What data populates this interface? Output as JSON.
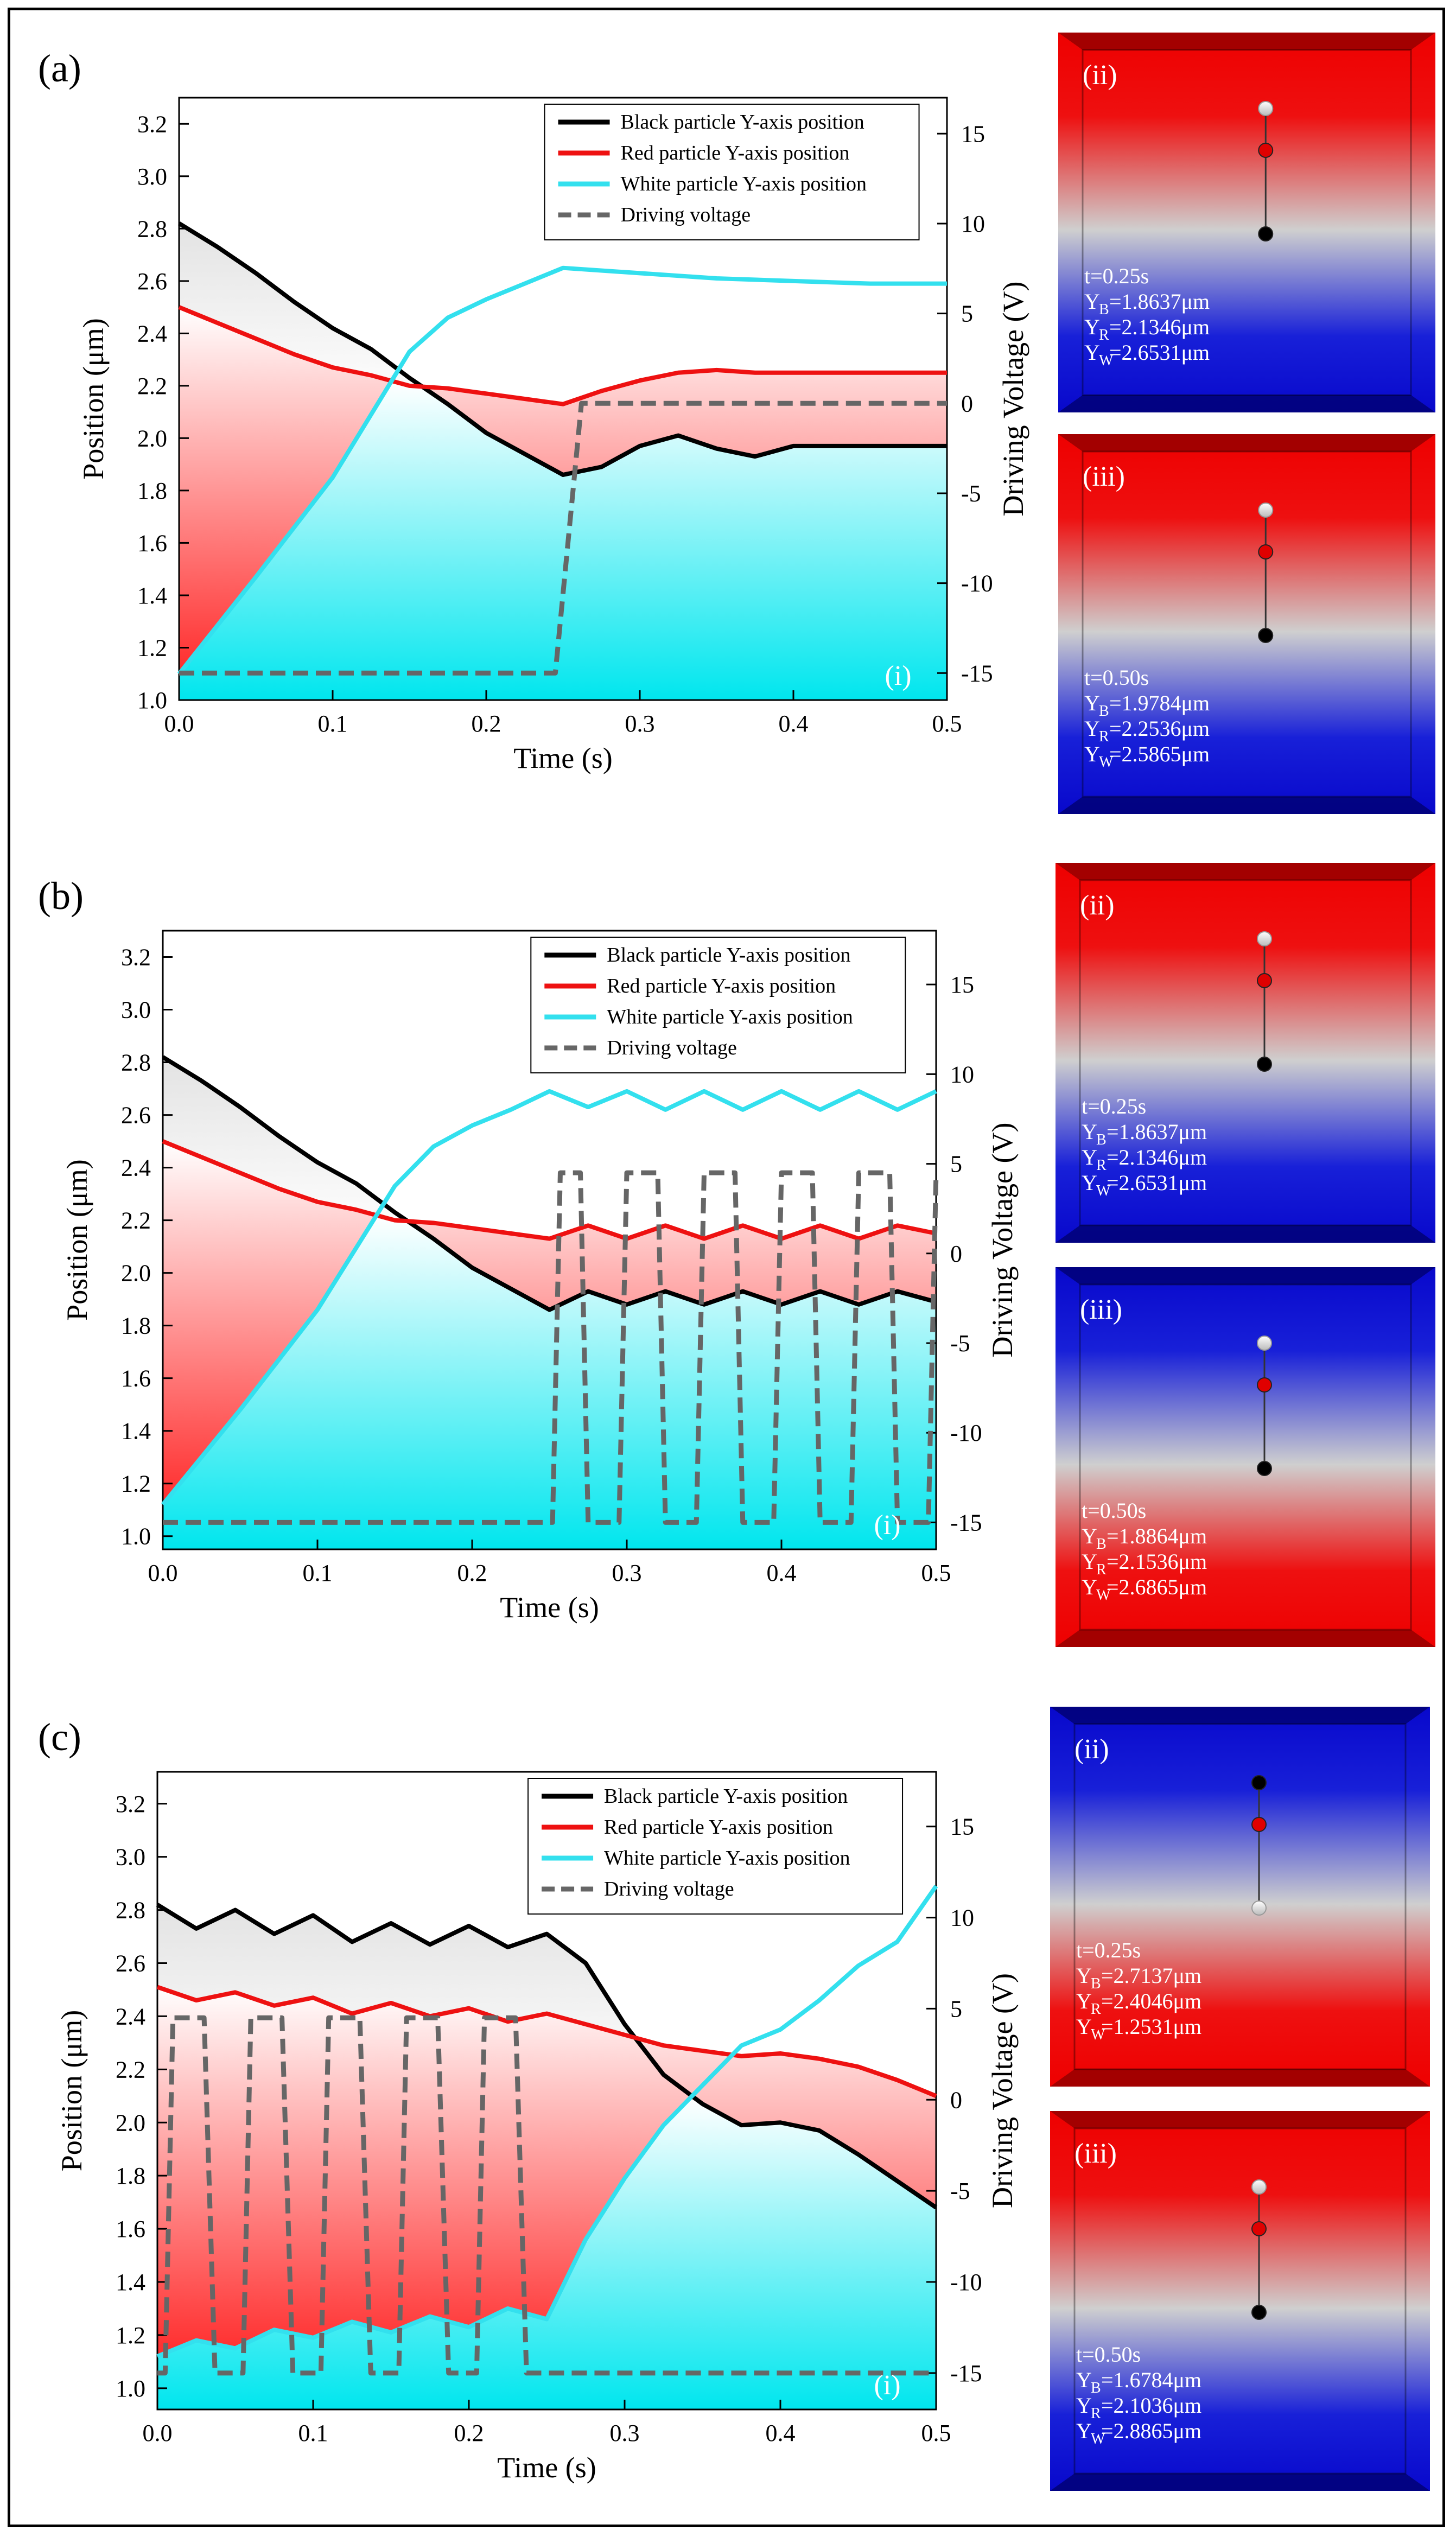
{
  "panels": [
    {
      "label": "(a)",
      "inset_label": "(i)",
      "chart_data": {
        "type": "line",
        "xlabel": "Time (s)",
        "ylabel": "Position (μm)",
        "y2label": "Driving Voltage (V)",
        "xlim": [
          0,
          0.5
        ],
        "ylim": [
          1.0,
          3.3
        ],
        "y2lim": [
          -16.5,
          17
        ],
        "xticks": [
          "0.0",
          "0.1",
          "0.2",
          "0.3",
          "0.4",
          "0.5"
        ],
        "yticks": [
          "1.0",
          "1.2",
          "1.4",
          "1.6",
          "1.8",
          "2.0",
          "2.2",
          "2.4",
          "2.6",
          "2.8",
          "3.0",
          "3.2"
        ],
        "y2ticks": [
          "-15",
          "-10",
          "-5",
          "0",
          "5",
          "10",
          "15"
        ],
        "legend": [
          "Black particle Y-axis position",
          "Red particle Y-axis position",
          "White particle Y-axis position",
          "Driving voltage"
        ],
        "series": [
          {
            "name": "Black particle Y-axis position",
            "color": "#000000",
            "x": [
              0,
              0.025,
              0.05,
              0.075,
              0.1,
              0.125,
              0.15,
              0.175,
              0.2,
              0.225,
              0.25,
              0.275,
              0.3,
              0.325,
              0.35,
              0.375,
              0.4,
              0.425,
              0.45,
              0.475,
              0.5
            ],
            "y": [
              2.82,
              2.73,
              2.63,
              2.52,
              2.42,
              2.34,
              2.23,
              2.13,
              2.02,
              1.94,
              1.86,
              1.89,
              1.97,
              2.01,
              1.96,
              1.93,
              1.97,
              1.97,
              1.97,
              1.97,
              1.97
            ]
          },
          {
            "name": "Red particle Y-axis position",
            "color": "#ee1111",
            "x": [
              0,
              0.025,
              0.05,
              0.075,
              0.1,
              0.125,
              0.15,
              0.175,
              0.2,
              0.225,
              0.25,
              0.275,
              0.3,
              0.325,
              0.35,
              0.375,
              0.4,
              0.425,
              0.45,
              0.475,
              0.5
            ],
            "y": [
              2.5,
              2.44,
              2.38,
              2.32,
              2.27,
              2.24,
              2.2,
              2.19,
              2.17,
              2.15,
              2.13,
              2.18,
              2.22,
              2.25,
              2.26,
              2.25,
              2.25,
              2.25,
              2.25,
              2.25,
              2.25
            ]
          },
          {
            "name": "White particle Y-axis position",
            "color": "#33e0ee",
            "x": [
              0,
              0.05,
              0.1,
              0.15,
              0.175,
              0.2,
              0.225,
              0.25,
              0.3,
              0.35,
              0.4,
              0.45,
              0.5
            ],
            "y": [
              1.1,
              1.47,
              1.85,
              2.33,
              2.46,
              2.53,
              2.59,
              2.65,
              2.63,
              2.61,
              2.6,
              2.59,
              2.59
            ]
          },
          {
            "name": "Driving voltage",
            "color": "#666666",
            "axis": "y2",
            "dashed": true,
            "x": [
              0,
              0.245,
              0.262,
              0.5
            ],
            "y": [
              -15,
              -15,
              0,
              0
            ]
          }
        ]
      },
      "snapshots": [
        {
          "label": "(ii)",
          "top": "red",
          "t": "t=0.25s",
          "YB": "=1.8637μm",
          "YR": "=2.1346μm",
          "YW": "=2.6531μm",
          "order": [
            "white",
            "red",
            "black"
          ]
        },
        {
          "label": "(iii)",
          "top": "red",
          "t": "t=0.50s",
          "YB": "=1.9784μm",
          "YR": "=2.2536μm",
          "YW": "=2.5865μm",
          "order": [
            "white",
            "red",
            "black"
          ]
        }
      ]
    },
    {
      "label": "(b)",
      "inset_label": "(i)",
      "chart_data": {
        "type": "line",
        "xlabel": "Time (s)",
        "ylabel": "Position (μm)",
        "y2label": "Driving Voltage (V)",
        "xlim": [
          0,
          0.5
        ],
        "ylim": [
          0.95,
          3.3
        ],
        "y2lim": [
          -16.5,
          18
        ],
        "xticks": [
          "0.0",
          "0.1",
          "0.2",
          "0.3",
          "0.4",
          "0.5"
        ],
        "yticks": [
          "1.0",
          "1.2",
          "1.4",
          "1.6",
          "1.8",
          "2.0",
          "2.2",
          "2.4",
          "2.6",
          "2.8",
          "3.0",
          "3.2"
        ],
        "y2ticks": [
          "-15",
          "-10",
          "-5",
          "0",
          "5",
          "10",
          "15"
        ],
        "legend": [
          "Black particle Y-axis position",
          "Red particle Y-axis position",
          "White particle Y-axis position",
          "Driving voltage"
        ],
        "series": [
          {
            "name": "Black particle Y-axis position",
            "color": "#000000",
            "x": [
              0,
              0.025,
              0.05,
              0.075,
              0.1,
              0.125,
              0.15,
              0.175,
              0.2,
              0.225,
              0.25,
              0.275,
              0.3,
              0.325,
              0.35,
              0.375,
              0.4,
              0.425,
              0.45,
              0.475,
              0.5
            ],
            "y": [
              2.82,
              2.73,
              2.63,
              2.52,
              2.42,
              2.34,
              2.23,
              2.13,
              2.02,
              1.94,
              1.86,
              1.93,
              1.88,
              1.93,
              1.88,
              1.93,
              1.88,
              1.93,
              1.88,
              1.93,
              1.89
            ]
          },
          {
            "name": "Red particle Y-axis position",
            "color": "#ee1111",
            "x": [
              0,
              0.025,
              0.05,
              0.075,
              0.1,
              0.125,
              0.15,
              0.175,
              0.2,
              0.225,
              0.25,
              0.275,
              0.3,
              0.325,
              0.35,
              0.375,
              0.4,
              0.425,
              0.45,
              0.475,
              0.5
            ],
            "y": [
              2.5,
              2.44,
              2.38,
              2.32,
              2.27,
              2.24,
              2.2,
              2.19,
              2.17,
              2.15,
              2.13,
              2.18,
              2.13,
              2.18,
              2.13,
              2.18,
              2.13,
              2.18,
              2.13,
              2.18,
              2.15
            ]
          },
          {
            "name": "White particle Y-axis position",
            "color": "#33e0ee",
            "x": [
              0,
              0.05,
              0.1,
              0.15,
              0.175,
              0.2,
              0.225,
              0.25,
              0.275,
              0.3,
              0.325,
              0.35,
              0.375,
              0.4,
              0.425,
              0.45,
              0.475,
              0.5
            ],
            "y": [
              1.12,
              1.48,
              1.86,
              2.33,
              2.48,
              2.56,
              2.62,
              2.69,
              2.63,
              2.69,
              2.62,
              2.69,
              2.62,
              2.69,
              2.62,
              2.69,
              2.62,
              2.69
            ]
          },
          {
            "name": "Driving voltage",
            "color": "#666666",
            "axis": "y2",
            "dashed": true,
            "x": [
              0,
              0.252,
              0.257,
              0.27,
              0.275,
              0.28,
              0.295,
              0.3,
              0.307,
              0.32,
              0.325,
              0.33,
              0.345,
              0.35,
              0.357,
              0.37,
              0.375,
              0.38,
              0.395,
              0.4,
              0.407,
              0.42,
              0.425,
              0.43,
              0.445,
              0.45,
              0.457,
              0.47,
              0.475,
              0.48,
              0.495,
              0.5
            ],
            "y": [
              -15,
              -15,
              4.5,
              4.5,
              -15,
              -15,
              -15,
              4.5,
              4.5,
              4.5,
              -15,
              -15,
              -15,
              4.5,
              4.5,
              4.5,
              -15,
              -15,
              -15,
              4.5,
              4.5,
              4.5,
              -15,
              -15,
              -15,
              4.5,
              4.5,
              4.5,
              -15,
              -15,
              -15,
              4.5
            ]
          }
        ]
      },
      "snapshots": [
        {
          "label": "(ii)",
          "top": "red",
          "t": "t=0.25s",
          "YB": "=1.8637μm",
          "YR": "=2.1346μm",
          "YW": "=2.6531μm",
          "order": [
            "white",
            "red",
            "black"
          ]
        },
        {
          "label": "(iii)",
          "top": "blue",
          "t": "t=0.50s",
          "YB": "=1.8864μm",
          "YR": "=2.1536μm",
          "YW": "=2.6865μm",
          "order": [
            "white",
            "red",
            "black"
          ]
        }
      ]
    },
    {
      "label": "(c)",
      "inset_label": "(i)",
      "chart_data": {
        "type": "line",
        "xlabel": "Time (s)",
        "ylabel": "Position (μm)",
        "y2label": "Driving Voltage (V)",
        "xlim": [
          0,
          0.5
        ],
        "ylim": [
          0.92,
          3.32
        ],
        "y2lim": [
          -17,
          18
        ],
        "xticks": [
          "0.0",
          "0.1",
          "0.2",
          "0.3",
          "0.4",
          "0.5"
        ],
        "yticks": [
          "1.0",
          "1.2",
          "1.4",
          "1.6",
          "1.8",
          "2.0",
          "2.2",
          "2.4",
          "2.6",
          "2.8",
          "3.0",
          "3.2"
        ],
        "y2ticks": [
          "-15",
          "-10",
          "-5",
          "0",
          "5",
          "10",
          "15"
        ],
        "legend": [
          "Black particle Y-axis position",
          "Red particle Y-axis position",
          "White particle Y-axis position",
          "Driving voltage"
        ],
        "series": [
          {
            "name": "Black particle Y-axis position",
            "color": "#000000",
            "x": [
              0,
              0.025,
              0.05,
              0.075,
              0.1,
              0.125,
              0.15,
              0.175,
              0.2,
              0.225,
              0.25,
              0.275,
              0.3,
              0.325,
              0.35,
              0.375,
              0.4,
              0.425,
              0.45,
              0.475,
              0.5
            ],
            "y": [
              2.82,
              2.73,
              2.8,
              2.71,
              2.78,
              2.68,
              2.75,
              2.67,
              2.74,
              2.66,
              2.71,
              2.6,
              2.37,
              2.18,
              2.07,
              1.99,
              2.0,
              1.97,
              1.88,
              1.78,
              1.68
            ]
          },
          {
            "name": "Red particle Y-axis position",
            "color": "#ee1111",
            "x": [
              0,
              0.025,
              0.05,
              0.075,
              0.1,
              0.125,
              0.15,
              0.175,
              0.2,
              0.225,
              0.25,
              0.275,
              0.3,
              0.325,
              0.35,
              0.375,
              0.4,
              0.425,
              0.45,
              0.475,
              0.5
            ],
            "y": [
              2.51,
              2.46,
              2.49,
              2.44,
              2.47,
              2.41,
              2.45,
              2.4,
              2.43,
              2.38,
              2.41,
              2.37,
              2.33,
              2.29,
              2.27,
              2.25,
              2.26,
              2.24,
              2.21,
              2.16,
              2.1
            ]
          },
          {
            "name": "White particle Y-axis position",
            "color": "#33e0ee",
            "x": [
              0,
              0.025,
              0.05,
              0.075,
              0.1,
              0.125,
              0.15,
              0.175,
              0.2,
              0.225,
              0.25,
              0.275,
              0.3,
              0.325,
              0.35,
              0.375,
              0.4,
              0.425,
              0.45,
              0.475,
              0.5
            ],
            "y": [
              1.12,
              1.18,
              1.15,
              1.22,
              1.19,
              1.25,
              1.21,
              1.27,
              1.23,
              1.3,
              1.26,
              1.56,
              1.79,
              1.99,
              2.14,
              2.29,
              2.35,
              2.46,
              2.59,
              2.68,
              2.89
            ]
          },
          {
            "name": "Driving voltage",
            "color": "#666666",
            "axis": "y2",
            "dashed": true,
            "x": [
              0,
              0.005,
              0.01,
              0.025,
              0.03,
              0.037,
              0.05,
              0.055,
              0.06,
              0.075,
              0.08,
              0.087,
              0.1,
              0.105,
              0.11,
              0.125,
              0.13,
              0.137,
              0.15,
              0.155,
              0.16,
              0.175,
              0.18,
              0.187,
              0.2,
              0.205,
              0.21,
              0.225,
              0.23,
              0.237,
              0.25,
              0.5
            ],
            "y": [
              -15,
              -15,
              4.5,
              4.5,
              4.5,
              -15,
              -15,
              -15,
              4.5,
              4.5,
              4.5,
              -15,
              -15,
              -15,
              4.5,
              4.5,
              4.5,
              -15,
              -15,
              -15,
              4.5,
              4.5,
              4.5,
              -15,
              -15,
              -15,
              4.5,
              4.5,
              4.5,
              -15,
              -15,
              -15
            ]
          }
        ]
      },
      "snapshots": [
        {
          "label": "(ii)",
          "top": "blue",
          "t": "t=0.25s",
          "YB": "=2.7137μm",
          "YR": "=2.4046μm",
          "YW": "=1.2531μm",
          "order": [
            "black",
            "red",
            "white"
          ]
        },
        {
          "label": "(iii)",
          "top": "red",
          "t": "t=0.50s",
          "YB": "=1.6784μm",
          "YR": "=2.1036μm",
          "YW": "=2.8865μm",
          "order": [
            "white",
            "red",
            "black"
          ]
        }
      ]
    }
  ],
  "symbols": {
    "YB": "Y",
    "YR": "Y",
    "YW": "Y",
    "subB": "B",
    "subR": "R",
    "subW": "W"
  }
}
